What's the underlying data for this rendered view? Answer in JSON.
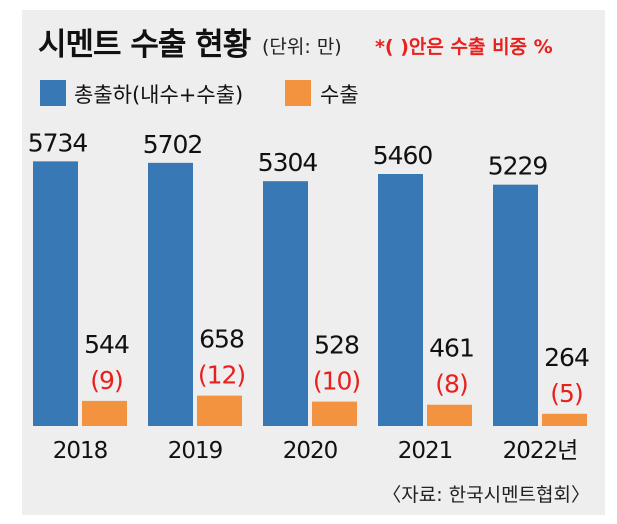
{
  "chart_data": {
    "type": "bar",
    "title": "시멘트 수출 현황",
    "unit_label": "(단위: 만)",
    "note": "*( )안은 수출 비중 %",
    "categories": [
      "2018",
      "2019",
      "2020",
      "2021",
      "2022년"
    ],
    "series": [
      {
        "name": "총출하(내수+수출)",
        "values": [
          5734,
          5702,
          5304,
          5460,
          5229
        ]
      },
      {
        "name": "수출",
        "values": [
          544,
          658,
          528,
          461,
          264
        ]
      }
    ],
    "export_share_labels": [
      "(9)",
      "(12)",
      "(10)",
      "(8)",
      "(5)"
    ],
    "source": "〈자료: 한국시멘트협회〉",
    "ylim": [
      0,
      6500
    ],
    "grid": false,
    "legend_position": "top-left"
  },
  "colors": {
    "total": "#3878b5",
    "export": "#f3923f",
    "share_text": "#e8201e",
    "text": "#111111",
    "background": "#eeeeee"
  }
}
